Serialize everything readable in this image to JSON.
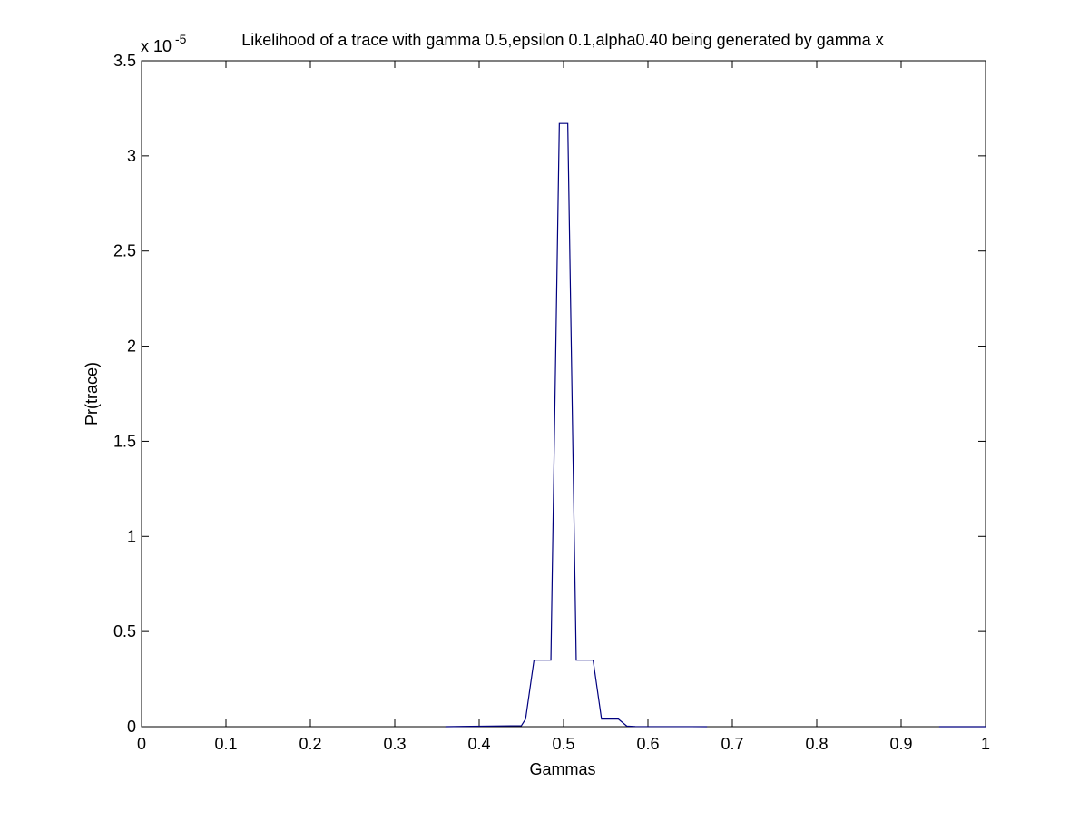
{
  "chart_data": {
    "type": "line",
    "title": "Likelihood of a trace with gamma 0.5,epsilon 0.1,alpha0.40 being generated by gamma x",
    "exponent_label": "x 10",
    "exponent_power": "-5",
    "xlabel": "Gammas",
    "ylabel": "Pr(trace)",
    "xlim": [
      0,
      1
    ],
    "ylim": [
      0,
      3.5
    ],
    "x_ticks": [
      0,
      0.1,
      0.2,
      0.3,
      0.4,
      0.5,
      0.6,
      0.7,
      0.8,
      0.9,
      1
    ],
    "x_tick_labels": [
      "0",
      "0.1",
      "0.2",
      "0.3",
      "0.4",
      "0.5",
      "0.6",
      "0.7",
      "0.8",
      "0.9",
      "1"
    ],
    "y_ticks": [
      0,
      0.5,
      1,
      1.5,
      2,
      2.5,
      3,
      3.5
    ],
    "y_tick_labels": [
      "0",
      "0.5",
      "1",
      "1.5",
      "2",
      "2.5",
      "3",
      "3.5"
    ],
    "grid": false,
    "series": [
      {
        "color": "#00007f",
        "segments": [
          {
            "x": [
              0.36,
              0.45,
              0.455,
              0.465,
              0.485,
              0.495,
              0.505,
              0.515,
              0.535,
              0.545,
              0.565,
              0.575,
              0.585,
              0.67
            ],
            "y": [
              0,
              0.005,
              0.04,
              0.35,
              0.35,
              3.17,
              3.17,
              0.35,
              0.35,
              0.04,
              0.04,
              0.003,
              0.001,
              0
            ]
          },
          {
            "x": [
              0.945,
              1.0
            ],
            "y": [
              0,
              0
            ]
          }
        ]
      }
    ]
  },
  "colors": {
    "line": "#00007f",
    "axes": "#000000",
    "background": "#ffffff"
  }
}
